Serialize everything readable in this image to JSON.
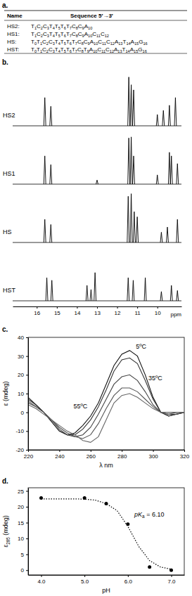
{
  "table": {
    "title": "a.",
    "header": [
      "Name",
      "Sequence 5′→3′"
    ],
    "rows": [
      {
        "name": "HS2:",
        "residues": [
          {
            "base": "T",
            "n": 1
          },
          {
            "base": "C",
            "n": 2
          },
          {
            "base": "C",
            "n": 3
          },
          {
            "base": "T",
            "n": 4
          },
          {
            "base": "T",
            "n": 5
          },
          {
            "base": "T",
            "n": 6
          },
          {
            "base": "T",
            "n": 7
          },
          {
            "base": "C",
            "n": 8
          },
          {
            "base": "C",
            "n": 9
          },
          {
            "base": "A",
            "n": 10
          }
        ]
      },
      {
        "name": "HS1:",
        "residues": [
          {
            "base": "T",
            "n": 1
          },
          {
            "base": "C",
            "n": 2
          },
          {
            "base": "C",
            "n": 3
          },
          {
            "base": "T",
            "n": 4
          },
          {
            "base": "T",
            "n": 5
          },
          {
            "base": "T",
            "n": 6
          },
          {
            "base": "T",
            "n": 7
          },
          {
            "base": "C",
            "n": 8
          },
          {
            "base": "C",
            "n": 9
          },
          {
            "base": "A",
            "n": 10
          },
          {
            "base": "C",
            "n": 11
          },
          {
            "base": "C",
            "n": 12
          }
        ]
      },
      {
        "name": "HS:",
        "residues": [
          {
            "base": "T",
            "n": 0
          },
          {
            "base": "T",
            "n": 1
          },
          {
            "base": "C",
            "n": 2
          },
          {
            "base": "C",
            "n": 3
          },
          {
            "base": "T",
            "n": 4
          },
          {
            "base": "T",
            "n": 5
          },
          {
            "base": "T",
            "n": 6
          },
          {
            "base": "T",
            "n": 7
          },
          {
            "base": "C",
            "n": 8
          },
          {
            "base": "C",
            "n": 9
          },
          {
            "base": "A",
            "n": 10
          },
          {
            "base": "C",
            "n": 11
          },
          {
            "base": "C",
            "n": 12
          },
          {
            "base": "A",
            "n": 13
          },
          {
            "base": "T",
            "n": 14
          },
          {
            "base": "A",
            "n": 15
          },
          {
            "base": "G",
            "n": 16
          }
        ]
      },
      {
        "name": "HST:",
        "residues": [
          {
            "base": "T",
            "n": 0
          },
          {
            "base": "T",
            "n": 1
          },
          {
            "base": "C",
            "n": 2
          },
          {
            "base": "C",
            "n": 3
          },
          {
            "base": "T",
            "n": 4
          },
          {
            "base": "T",
            "n": 5
          },
          {
            "base": "T",
            "n": 6
          },
          {
            "base": "T",
            "n": 7
          },
          {
            "base": "C",
            "n": 8
          },
          {
            "base": "T",
            "n": 9
          },
          {
            "base": "A",
            "n": 10
          },
          {
            "base": "C",
            "n": 11
          },
          {
            "base": "C",
            "n": 12
          },
          {
            "base": "A",
            "n": 13
          },
          {
            "base": "T",
            "n": 14
          },
          {
            "base": "A",
            "n": 15
          },
          {
            "base": "G",
            "n": 16
          }
        ]
      }
    ]
  },
  "chart_data": [
    {
      "type": "spectrum",
      "title": "b.",
      "xlabel": "ppm",
      "xlim": [
        17.2,
        8.8
      ],
      "xticks": [
        16,
        15,
        14,
        13,
        12,
        11,
        10
      ],
      "ylim": [
        0,
        1
      ],
      "tick_labels": "x",
      "series": [
        {
          "name": "HS2",
          "color": "#000000",
          "x": [
            15.6,
            15.3,
            11.42,
            11.3,
            11.18,
            10.0,
            9.7,
            9.4,
            9.1
          ],
          "values": [
            0.55,
            0.38,
            0.95,
            0.8,
            0.7,
            0.22,
            0.3,
            0.4,
            0.55
          ]
        },
        {
          "name": "HS1",
          "color": "#000000",
          "x": [
            15.6,
            15.3,
            13.0,
            11.42,
            11.3,
            11.18,
            10.0,
            9.4,
            9.3,
            9.0
          ],
          "values": [
            0.55,
            0.38,
            0.08,
            0.9,
            0.92,
            0.55,
            0.18,
            0.62,
            0.55,
            0.4
          ]
        },
        {
          "name": "HS",
          "color": "#000000",
          "x": [
            15.6,
            15.3,
            11.45,
            11.3,
            11.15,
            11.0,
            9.8,
            9.5,
            9.0
          ],
          "values": [
            0.45,
            0.35,
            0.9,
            0.95,
            0.6,
            0.5,
            0.2,
            0.3,
            0.45
          ]
        },
        {
          "name": "HST",
          "color": "#000000",
          "x": [
            15.5,
            15.25,
            13.5,
            13.3,
            13.1,
            11.45,
            11.2,
            10.6,
            9.8,
            9.3,
            9.0
          ],
          "values": [
            0.45,
            0.4,
            0.3,
            0.22,
            0.55,
            0.45,
            0.4,
            0.45,
            0.18,
            0.3,
            0.2
          ]
        }
      ]
    },
    {
      "type": "line",
      "title": "c.",
      "xlabel": "λ nm",
      "ylabel": "ε (mdeg)",
      "x": [
        220,
        225,
        230,
        235,
        240,
        245,
        250,
        255,
        260,
        265,
        270,
        275,
        280,
        285,
        290,
        295,
        300,
        305,
        310,
        315,
        320
      ],
      "xlim": [
        220,
        320
      ],
      "xticks": [
        220,
        240,
        260,
        280,
        300,
        320
      ],
      "ylim": [
        -20,
        40
      ],
      "yticks": [
        -20,
        -10,
        0,
        10,
        20,
        30,
        40
      ],
      "series": [
        {
          "color": "#111111",
          "values": [
            8,
            4,
            0,
            -5,
            -10,
            -12,
            -11,
            -7,
            -2,
            5,
            15,
            25,
            31,
            33,
            30,
            20,
            8,
            0,
            -2,
            -1,
            0
          ]
        },
        {
          "color": "#333333",
          "values": [
            7,
            4,
            0,
            -5,
            -10,
            -12,
            -12,
            -9,
            -4,
            3,
            12,
            22,
            28,
            29,
            26,
            17,
            7,
            0,
            -2,
            -1,
            0
          ]
        },
        {
          "color": "#444444",
          "values": [
            6,
            3,
            0,
            -4,
            -9,
            -12,
            -13,
            -12,
            -8,
            -1,
            7,
            15,
            19,
            20,
            17,
            11,
            4,
            0,
            -1,
            -1,
            0
          ]
        },
        {
          "color": "#555555",
          "values": [
            5,
            3,
            0,
            -4,
            -8,
            -11,
            -13,
            -14,
            -12,
            -6,
            2,
            9,
            13,
            13,
            11,
            7,
            3,
            0,
            -1,
            0,
            0
          ]
        },
        {
          "color": "#666666",
          "values": [
            4,
            2,
            -1,
            -4,
            -7,
            -10,
            -12,
            -15,
            -16,
            -13,
            -4,
            5,
            9,
            10,
            8,
            5,
            2,
            0,
            0,
            0,
            0
          ]
        }
      ],
      "annotations": [
        {
          "text": "5ºC",
          "x": 289,
          "y": 34
        },
        {
          "text": "35ºC",
          "x": 297,
          "y": 17
        },
        {
          "text": "55ºC",
          "x": 249,
          "y": 2
        }
      ]
    },
    {
      "type": "scatter",
      "title": "d.",
      "xlabel": "pH",
      "ylabel": [
        {
          "text": "ε"
        },
        {
          "text": "285",
          "sub": true
        },
        {
          "text": " (mdeg)"
        }
      ],
      "xlim": [
        3.7,
        7.3
      ],
      "xticks": [
        {
          "value": 4,
          "label": "4.0"
        },
        {
          "value": 5,
          "label": "5.0"
        },
        {
          "value": 6,
          "label": "6.0"
        },
        {
          "value": 7,
          "label": "7.0"
        }
      ],
      "ylim": [
        -1.5,
        26
      ],
      "yticks": [
        0,
        5,
        10,
        15,
        20,
        25
      ],
      "series": [
        {
          "type": "scatter",
          "marker": "circle",
          "color": "#000000",
          "x": [
            4.0,
            5.0,
            5.5,
            6.0,
            6.5,
            7.0
          ],
          "values": [
            22.8,
            22.8,
            21.0,
            14.5,
            1.0,
            0.0
          ]
        },
        {
          "type": "line",
          "line_style": "dotted",
          "color": "#000000",
          "x": [
            4.0,
            4.25,
            4.5,
            4.75,
            5.0,
            5.25,
            5.5,
            5.75,
            6.0,
            6.25,
            6.5,
            6.75,
            7.0
          ],
          "values": [
            22.5,
            22.5,
            22.5,
            22.5,
            22.4,
            22.1,
            21.0,
            18.8,
            13.8,
            7.5,
            3.0,
            1.0,
            0.3
          ]
        }
      ],
      "annotations": [
        {
          "text": [
            {
              "text": "p",
              "italic": true
            },
            {
              "text": "K",
              "italic": true
            },
            {
              "text": "a",
              "sub": true
            },
            {
              "text": " = 6.10"
            }
          ],
          "x": 6.15,
          "y": 17
        }
      ]
    }
  ]
}
